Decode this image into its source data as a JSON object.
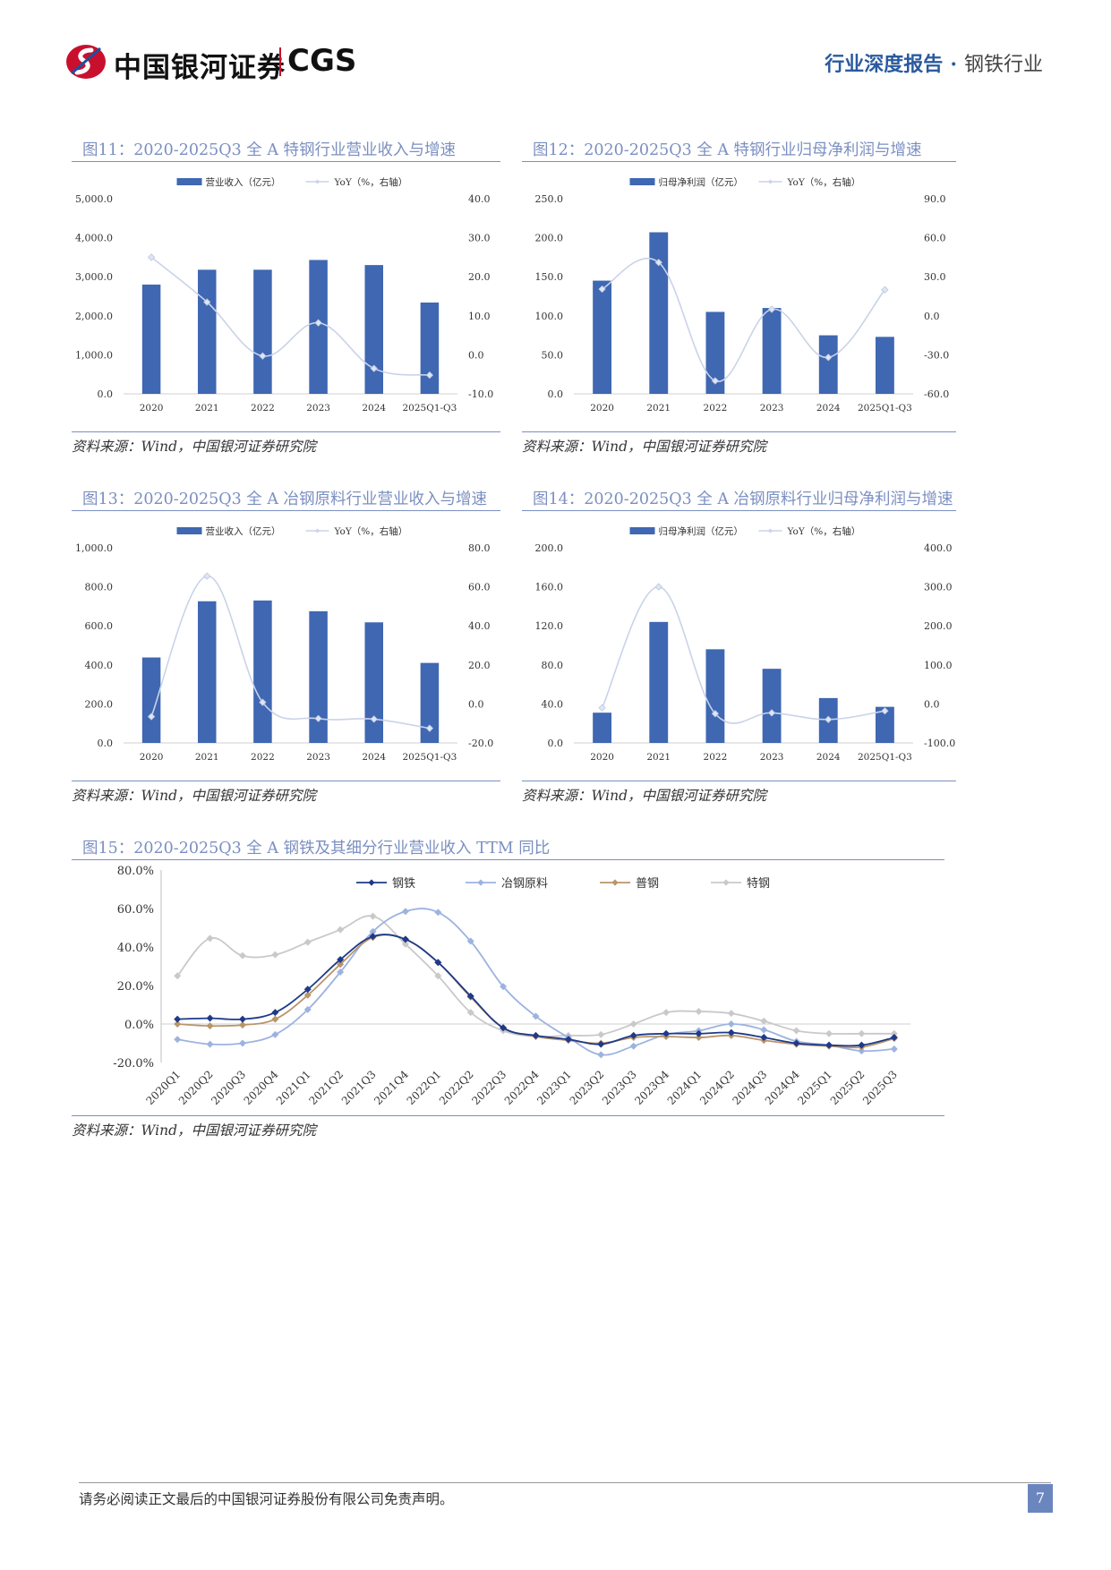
{
  "header": {
    "logo_cn": "中国银河证券",
    "logo_en": "CGS",
    "report_type": "行业深度报告",
    "industry": "钢铁行业"
  },
  "colors": {
    "bar": "#3f67b2",
    "yoy_line": "#c9d3e8",
    "accent": "#7b8fc0",
    "brand_red": "#c8102e"
  },
  "footer": {
    "disclaimer": "请务必阅读正文最后的中国银河证券股份有限公司免责声明。",
    "page": "7"
  },
  "charts": {
    "c11": {
      "title": "图11：2020-2025Q3 全 A 特钢行业营业收入与增速",
      "source": "资料来源：Wind，中国银河证券研究院",
      "left_ticks": [
        "0.0",
        "1,000.0",
        "2,000.0",
        "3,000.0",
        "4,000.0",
        "5,000.0"
      ],
      "right_ticks": [
        "-10.0",
        "0.0",
        "10.0",
        "20.0",
        "30.0",
        "40.0"
      ]
    },
    "c12": {
      "title": "图12：2020-2025Q3 全 A 特钢行业归母净利润与增速",
      "source": "资料来源：Wind，中国银河证券研究院",
      "left_ticks": [
        "0.0",
        "50.0",
        "100.0",
        "150.0",
        "200.0",
        "250.0"
      ],
      "right_ticks": [
        "-60.0",
        "-30.0",
        "0.0",
        "30.0",
        "60.0",
        "90.0"
      ]
    },
    "c13": {
      "title": "图13：2020-2025Q3 全 A 冶钢原料行业营业收入与增速",
      "source": "资料来源：Wind，中国银河证券研究院",
      "left_ticks": [
        "0.0",
        "200.0",
        "400.0",
        "600.0",
        "800.0",
        "1,000.0"
      ],
      "right_ticks": [
        "-20.0",
        "0.0",
        "20.0",
        "40.0",
        "60.0",
        "80.0"
      ]
    },
    "c14": {
      "title": "图14：2020-2025Q3 全 A 冶钢原料行业归母净利润与增速",
      "source": "资料来源：Wind，中国银河证券研究院",
      "left_ticks": [
        "0.0",
        "40.0",
        "80.0",
        "120.0",
        "160.0",
        "200.0"
      ],
      "right_ticks": [
        "-100.0",
        "0.0",
        "100.0",
        "200.0",
        "300.0",
        "400.0"
      ]
    },
    "c15": {
      "title": "图15：2020-2025Q3 全 A 钢铁及其细分行业营业收入 TTM 同比",
      "source": "资料来源：Wind，中国银河证券研究院",
      "y_ticks": [
        "-20.0%",
        "0.0%",
        "20.0%",
        "40.0%",
        "60.0%",
        "80.0%"
      ]
    }
  },
  "chart_data": [
    {
      "id": "c11",
      "type": "bar",
      "title": "2020-2025Q3 全 A 特钢行业营业收入与增速",
      "categories": [
        "2020",
        "2021",
        "2022",
        "2023",
        "2024",
        "2025Q1-Q3"
      ],
      "series": [
        {
          "name": "营业收入（亿元）",
          "axis": "left",
          "kind": "bar",
          "values": [
            2800,
            3180,
            3180,
            3430,
            3300,
            2340
          ]
        },
        {
          "name": "YoY（%，右轴）",
          "axis": "right",
          "kind": "line",
          "values": [
            25.0,
            13.5,
            -0.3,
            8.2,
            -3.5,
            -5.2
          ]
        }
      ],
      "ylim_left": [
        0,
        5000
      ],
      "ylim_right": [
        -10,
        40
      ]
    },
    {
      "id": "c12",
      "type": "bar",
      "title": "2020-2025Q3 全 A 特钢行业归母净利润与增速",
      "categories": [
        "2020",
        "2021",
        "2022",
        "2023",
        "2024",
        "2025Q1-Q3"
      ],
      "series": [
        {
          "name": "归母净利润（亿元）",
          "axis": "left",
          "kind": "bar",
          "values": [
            145,
            207,
            105,
            110,
            75,
            73
          ]
        },
        {
          "name": "YoY（%，右轴）",
          "axis": "right",
          "kind": "line",
          "values": [
            20.5,
            41.0,
            -50.0,
            5.0,
            -32.0,
            20.0
          ]
        }
      ],
      "ylim_left": [
        0,
        250
      ],
      "ylim_right": [
        -60,
        90
      ]
    },
    {
      "id": "c13",
      "type": "bar",
      "title": "2020-2025Q3 全 A 冶钢原料行业营业收入与增速",
      "categories": [
        "2020",
        "2021",
        "2022",
        "2023",
        "2024",
        "2025Q1-Q3"
      ],
      "series": [
        {
          "name": "营业收入（亿元）",
          "axis": "left",
          "kind": "bar",
          "values": [
            438,
            726,
            730,
            675,
            618,
            410
          ]
        },
        {
          "name": "YoY（%，右轴）",
          "axis": "right",
          "kind": "line",
          "values": [
            -6.5,
            65.5,
            0.8,
            -7.5,
            -7.8,
            -12.5
          ]
        }
      ],
      "ylim_left": [
        0,
        1000
      ],
      "ylim_right": [
        -20,
        80
      ]
    },
    {
      "id": "c14",
      "type": "bar",
      "title": "2020-2025Q3 全 A 冶钢原料行业归母净利润与增速",
      "categories": [
        "2020",
        "2021",
        "2022",
        "2023",
        "2024",
        "2025Q1-Q3"
      ],
      "series": [
        {
          "name": "归母净利润（亿元）",
          "axis": "left",
          "kind": "bar",
          "values": [
            31,
            124,
            96,
            76,
            46,
            37
          ]
        },
        {
          "name": "YoY（%，右轴）",
          "axis": "right",
          "kind": "line",
          "values": [
            -10,
            300,
            -25,
            -23,
            -40,
            -18
          ]
        }
      ],
      "ylim_left": [
        0,
        200
      ],
      "ylim_right": [
        -100,
        400
      ]
    },
    {
      "id": "c15",
      "type": "line",
      "title": "2020-2025Q3 全 A 钢铁及其细分行业营业收入 TTM 同比",
      "x": [
        "2020Q1",
        "2020Q2",
        "2020Q3",
        "2020Q4",
        "2021Q1",
        "2021Q2",
        "2021Q3",
        "2021Q4",
        "2022Q1",
        "2022Q2",
        "2022Q3",
        "2022Q4",
        "2023Q1",
        "2023Q2",
        "2023Q3",
        "2023Q4",
        "2024Q1",
        "2024Q2",
        "2024Q3",
        "2024Q4",
        "2025Q1",
        "2025Q2",
        "2025Q3"
      ],
      "series": [
        {
          "name": "钢铁",
          "color": "#1f3a8a",
          "values": [
            2.5,
            3.0,
            2.5,
            6.0,
            18.0,
            33.5,
            45.5,
            44.0,
            32.0,
            14.5,
            -2.0,
            -6.0,
            -8.0,
            -10.5,
            -6.0,
            -5.0,
            -5.0,
            -4.5,
            -7.0,
            -10.0,
            -11.0,
            -11.0,
            -7.0
          ]
        },
        {
          "name": "冶钢原料",
          "color": "#9db3df",
          "values": [
            -8.0,
            -10.5,
            -10.0,
            -5.5,
            7.5,
            27.0,
            48.0,
            58.5,
            58.0,
            43.0,
            19.5,
            4.0,
            -7.0,
            -16.0,
            -11.5,
            -5.5,
            -3.5,
            0.0,
            -3.0,
            -9.0,
            -11.0,
            -14.0,
            -13.0
          ]
        },
        {
          "name": "普钢",
          "color": "#b9956a",
          "values": [
            0.0,
            -1.0,
            -0.5,
            2.5,
            15.0,
            31.0,
            45.0,
            44.0,
            32.0,
            14.0,
            -2.0,
            -6.5,
            -8.5,
            -10.0,
            -7.0,
            -6.5,
            -7.0,
            -6.0,
            -8.5,
            -10.5,
            -11.5,
            -12.0,
            -7.5
          ]
        },
        {
          "name": "特钢",
          "color": "#c9c9c9",
          "values": [
            25.0,
            44.5,
            35.5,
            36.0,
            42.5,
            49.0,
            56.0,
            41.5,
            25.0,
            6.0,
            -3.5,
            -6.5,
            -6.0,
            -5.5,
            0.0,
            6.0,
            6.5,
            5.5,
            1.5,
            -3.5,
            -5.0,
            -5.0,
            -5.0
          ]
        }
      ],
      "ylim": [
        -20,
        80
      ],
      "legend_position": "top"
    }
  ]
}
